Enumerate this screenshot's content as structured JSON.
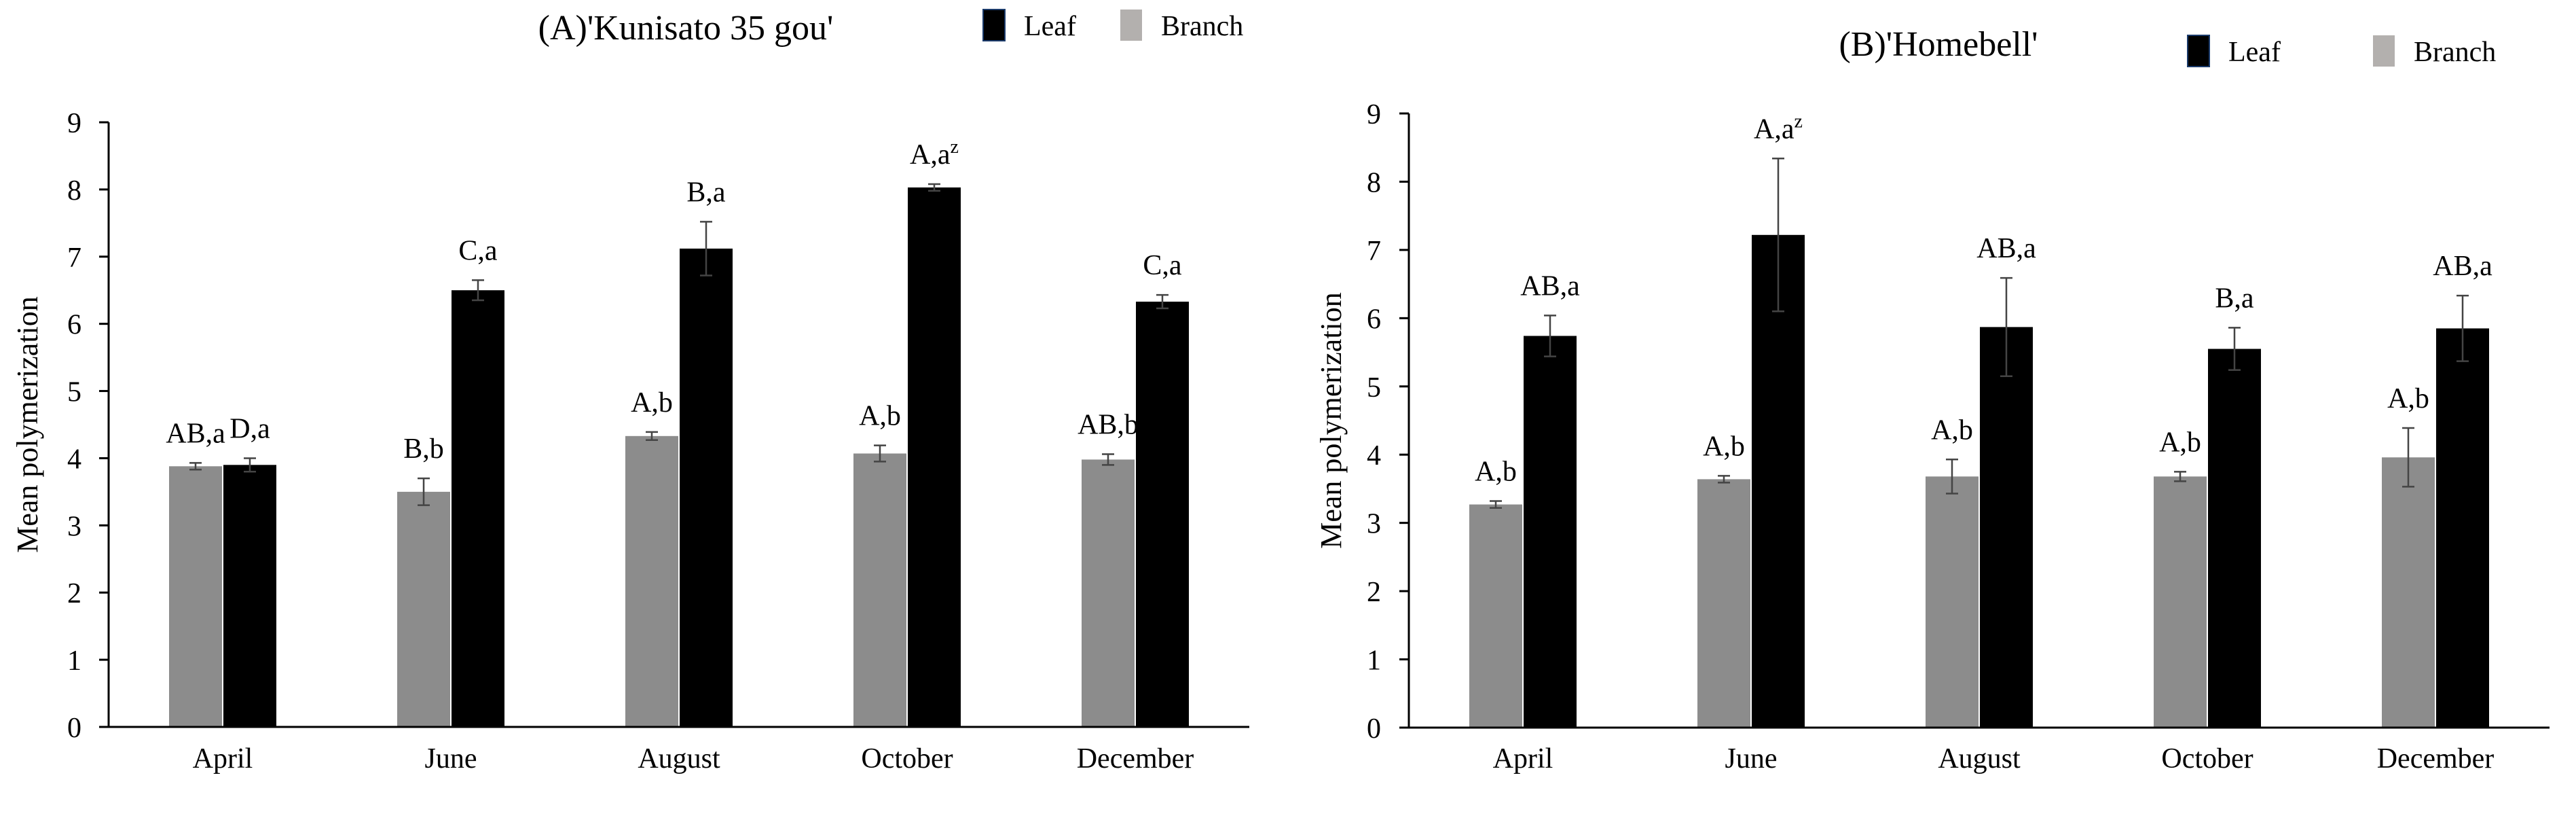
{
  "chart_data": [
    {
      "type": "bar",
      "title": "(A)'Kunisato 35 gou'",
      "xlabel": "",
      "ylabel": "Mean polymerization",
      "ylim": [
        0,
        9
      ],
      "yticks": [
        "0",
        "1",
        "2",
        "3",
        "4",
        "5",
        "6",
        "7",
        "8",
        "9"
      ],
      "categories": [
        "April",
        "June",
        "August",
        "October",
        "December"
      ],
      "legend_position": "top-right",
      "series": [
        {
          "name": "Branch",
          "color": "#8c8c8c",
          "legend_color": "#b3b0ae",
          "values": [
            3.88,
            3.5,
            4.33,
            4.07,
            3.98
          ],
          "errors": [
            0.05,
            0.2,
            0.06,
            0.12,
            0.08
          ],
          "labels": [
            "AB,a",
            "B,b",
            "A,b",
            "A,b",
            "AB,b"
          ]
        },
        {
          "name": "Leaf",
          "color": "#000000",
          "legend_color": "#000000",
          "values": [
            3.9,
            6.5,
            7.12,
            8.03,
            6.33
          ],
          "errors": [
            0.1,
            0.15,
            0.4,
            0.05,
            0.1
          ],
          "labels": [
            "D,a",
            "C,a",
            "B,a",
            "A,a",
            "C,a"
          ],
          "label_superscripts": [
            "",
            "",
            "",
            "z",
            ""
          ]
        }
      ]
    },
    {
      "type": "bar",
      "title": "(B)'Homebell'",
      "xlabel": "",
      "ylabel": "Mean polymerization",
      "ylim": [
        0,
        9
      ],
      "yticks": [
        "0",
        "1",
        "2",
        "3",
        "4",
        "5",
        "6",
        "7",
        "8",
        "9"
      ],
      "categories": [
        "April",
        "June",
        "August",
        "October",
        "December"
      ],
      "legend_position": "top-right",
      "series": [
        {
          "name": "Branch",
          "color": "#8c8c8c",
          "legend_color": "#b3b0ae",
          "values": [
            3.27,
            3.64,
            3.68,
            3.68,
            3.96
          ],
          "errors": [
            0.05,
            0.05,
            0.25,
            0.07,
            0.43
          ],
          "labels": [
            "A,b",
            "A,b",
            "A,b",
            "A,b",
            "A,b"
          ]
        },
        {
          "name": "Leaf",
          "color": "#000000",
          "legend_color": "#000000",
          "values": [
            5.74,
            7.22,
            5.87,
            5.55,
            5.85
          ],
          "errors": [
            0.3,
            1.12,
            0.72,
            0.31,
            0.48
          ],
          "labels": [
            "AB,a",
            "A,a",
            "AB,a",
            "B,a",
            "AB,a"
          ],
          "label_superscripts": [
            "",
            "z",
            "",
            "",
            ""
          ]
        }
      ]
    }
  ]
}
